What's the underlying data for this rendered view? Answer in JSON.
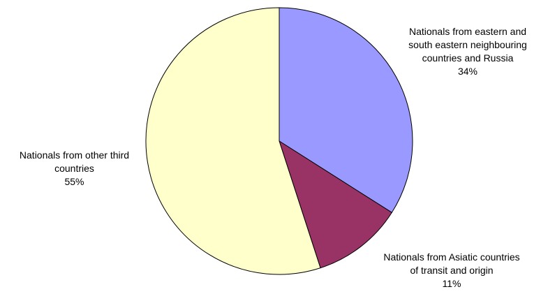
{
  "chart_data": {
    "type": "pie",
    "title": "",
    "start_angle_deg": 0,
    "direction": "clockwise",
    "slices": [
      {
        "label_lines": [
          "Nationals from eastern and",
          "south eastern neighbouring",
          "countries and Russia"
        ],
        "value": 34,
        "percent_text": "34%",
        "color": "#9999ff"
      },
      {
        "label_lines": [
          "Nationals from Asiatic countries",
          "of transit and origin"
        ],
        "value": 11,
        "percent_text": "11%",
        "color": "#993366"
      },
      {
        "label_lines": [
          "Nationals from other third",
          "countries"
        ],
        "value": 55,
        "percent_text": "55%",
        "color": "#ffffcc"
      }
    ]
  }
}
